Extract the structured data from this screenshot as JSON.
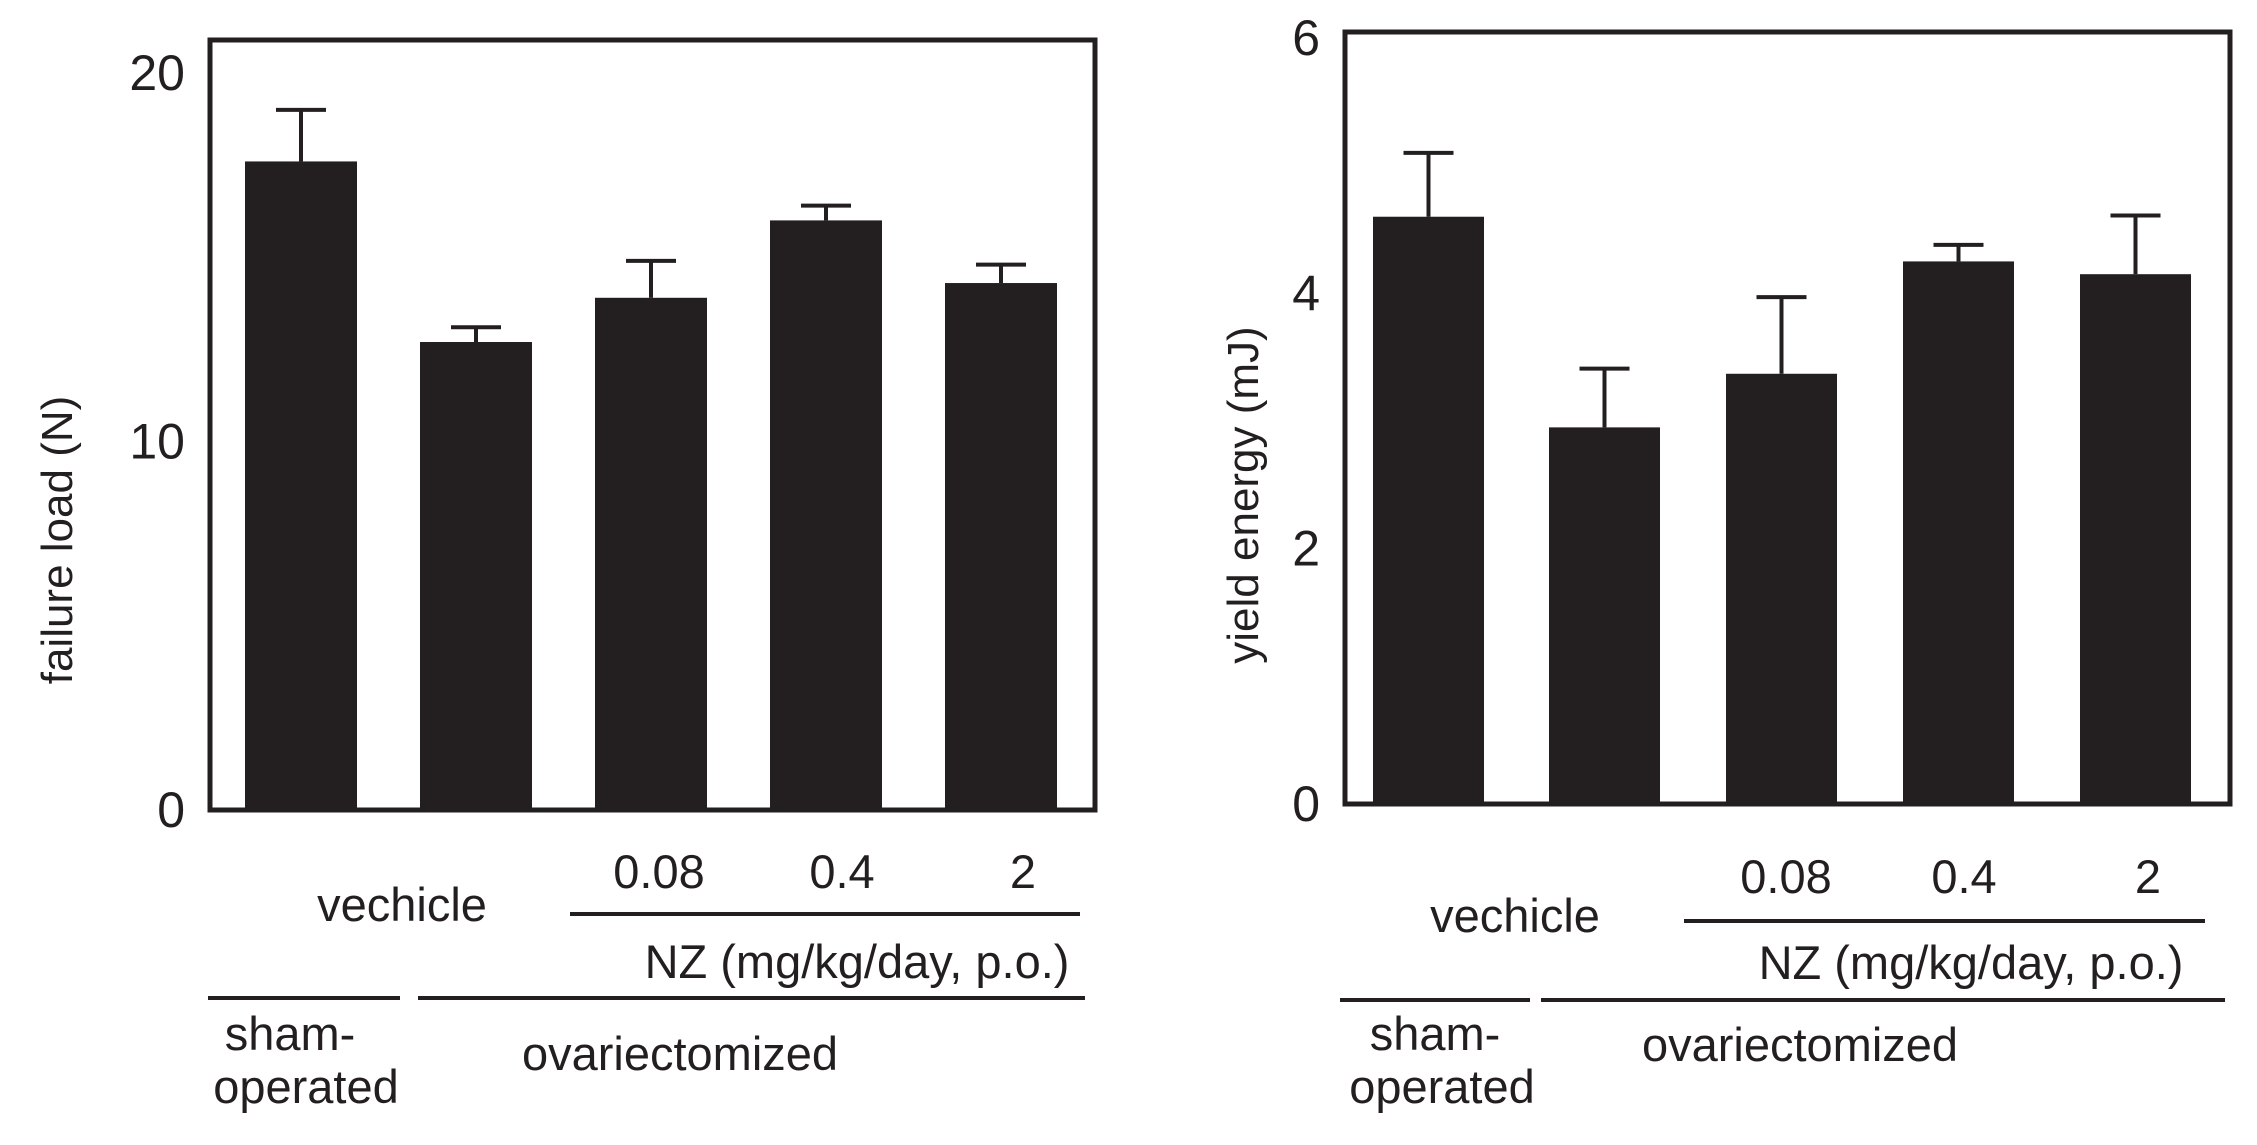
{
  "colors": {
    "bar": "#231f20",
    "axis": "#231f20",
    "background": "#ffffff"
  },
  "chart_data": [
    {
      "type": "bar",
      "ylabel": "failure load (N)",
      "ylim": [
        0,
        21
      ],
      "yticks": [
        0,
        10,
        20
      ],
      "categories": [
        "sham-operated",
        "vechicle",
        "0.08",
        "0.4",
        "2"
      ],
      "values": [
        17.6,
        12.7,
        13.9,
        16.0,
        14.3
      ],
      "errors": [
        1.4,
        0.4,
        1.0,
        0.4,
        0.5
      ],
      "labels": {
        "vehicle": "vechicle",
        "doses": [
          "0.08",
          "0.4",
          "2"
        ],
        "drug": "NZ (mg/kg/day, p.o.)",
        "sham_line1": "sham-",
        "sham_line2": "operated",
        "ovx": "ovariectomized"
      }
    },
    {
      "type": "bar",
      "ylabel": "yield energy (mJ)",
      "ylim": [
        0,
        6.1
      ],
      "yticks": [
        0,
        2,
        4,
        6
      ],
      "categories": [
        "sham-operated",
        "vechicle",
        "0.08",
        "0.4",
        "2"
      ],
      "values": [
        4.6,
        2.95,
        3.37,
        4.25,
        4.15
      ],
      "errors": [
        0.5,
        0.46,
        0.6,
        0.13,
        0.46
      ],
      "labels": {
        "vehicle": "vechicle",
        "doses": [
          "0.08",
          "0.4",
          "2"
        ],
        "drug": "NZ (mg/kg/day, p.o.)",
        "sham_line1": "sham-",
        "sham_line2": "operated",
        "ovx": "ovariectomized"
      }
    }
  ]
}
